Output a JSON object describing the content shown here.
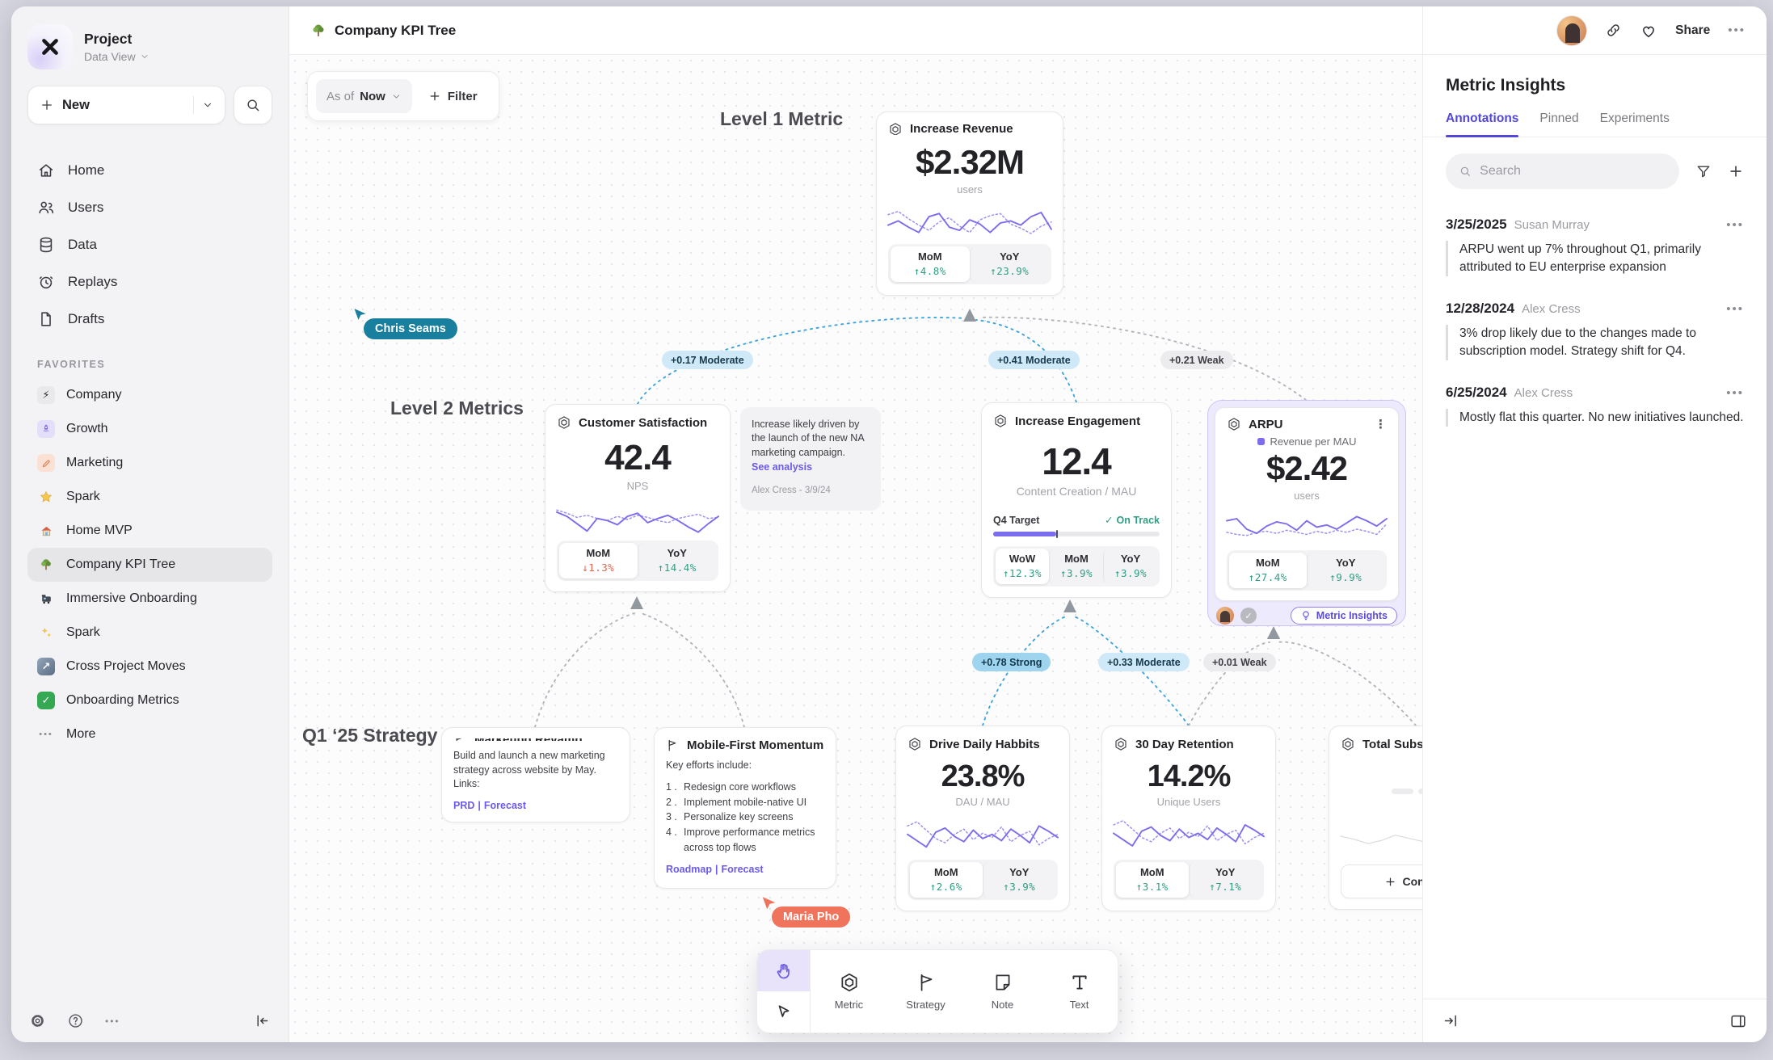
{
  "colors": {
    "accent_purple": "#6c5ce7",
    "edge_blue": "#3fa4dc",
    "positive_green": "#2f9e83",
    "negative_red": "#e4654c",
    "cursor_teal": "#187f9f",
    "cursor_coral": "#f0735c"
  },
  "icons": {
    "ellipsis": "•••",
    "vdots": "⋮",
    "bolt": "⚡",
    "arrow_ne": "↗",
    "check": "✓",
    "plus": "+"
  },
  "sidebar": {
    "project_name": "Project",
    "project_view": "Data View",
    "new_label": "New",
    "nav": [
      {
        "label": "Home"
      },
      {
        "label": "Users"
      },
      {
        "label": "Data"
      },
      {
        "label": "Replays"
      },
      {
        "label": "Drafts"
      }
    ],
    "favorites_header": "FAVORITES",
    "favorites": [
      {
        "label": "Company"
      },
      {
        "label": "Growth"
      },
      {
        "label": "Marketing"
      },
      {
        "label": "Spark"
      },
      {
        "label": "Home MVP"
      },
      {
        "label": "Company KPI Tree"
      },
      {
        "label": "Immersive Onboarding"
      },
      {
        "label": "Spark"
      },
      {
        "label": "Cross Project Moves"
      },
      {
        "label": "Onboarding Metrics"
      }
    ],
    "more_label": "More"
  },
  "header": {
    "title": "Company KPI Tree",
    "share_label": "Share"
  },
  "canvas": {
    "asof_prefix": "As of",
    "asof_value": "Now",
    "filter_label": "Filter",
    "level1_label": "Level 1 Metric",
    "level2_label": "Level 2 Metrics",
    "strategy_label": "Q1 ‘25 Strategy",
    "cursors": {
      "chris": "Chris Seams",
      "maria": "Maria Pho"
    },
    "edges": {
      "e1": "+0.17 Moderate",
      "e2": "+0.41 Moderate",
      "e3": "+0.21 Weak",
      "e4": "+0.78 Strong",
      "e5": "+0.33 Moderate",
      "e6": "+0.01 Weak"
    },
    "cards": {
      "revenue": {
        "title": "Increase Revenue",
        "value": "$2.32M",
        "unit": "users",
        "stats": [
          {
            "label": "MoM",
            "value": "↑4.8%"
          },
          {
            "label": "YoY",
            "value": "↑23.9%"
          }
        ],
        "spark": {
          "solid": [
            22,
            18,
            24,
            29,
            14,
            11,
            24,
            27,
            17,
            21,
            29,
            20,
            18,
            22,
            14,
            10,
            26
          ],
          "dotted": [
            12,
            9,
            16,
            22,
            27,
            19,
            15,
            23,
            29,
            17,
            13,
            11,
            21,
            25,
            30,
            23,
            19
          ]
        }
      },
      "csat": {
        "title": "Customer Satisfaction",
        "value": "42.4",
        "unit": "NPS",
        "stats": [
          {
            "label": "MoM",
            "value": "↓1.3%"
          },
          {
            "label": "YoY",
            "value": "↑14.4%"
          }
        ],
        "spark": {
          "solid": [
            13,
            17,
            24,
            31,
            19,
            21,
            25,
            17,
            14,
            23,
            19,
            16,
            21,
            27,
            32,
            24,
            17
          ],
          "dotted": [
            11,
            14,
            18,
            16,
            19,
            21,
            17,
            20,
            16,
            18,
            21,
            23,
            19,
            17,
            15,
            19,
            18
          ]
        }
      },
      "note": {
        "text": "Increase likely driven by the launch of the new NA marketing campaign.",
        "link": "See analysis",
        "byline": "Alex Cress - 3/9/24"
      },
      "engagement": {
        "title": "Increase Engagement",
        "value": "12.4",
        "unit": "Content Creation / MAU",
        "target_label": "Q4 Target",
        "target_status": "On Track",
        "target_pct": 38,
        "stats": [
          {
            "label": "WoW",
            "value": "↑12.3%"
          },
          {
            "label": "MoM",
            "value": "↑3.9%"
          },
          {
            "label": "YoY",
            "value": "↑3.9%"
          }
        ]
      },
      "arpu": {
        "title": "ARPU",
        "legend": "Revenue per MAU",
        "value": "$2.42",
        "unit": "users",
        "insights_label": "Metric Insights",
        "stats": [
          {
            "label": "MoM",
            "value": "↑27.4%"
          },
          {
            "label": "YoY",
            "value": "↑9.9%"
          }
        ],
        "spark": {
          "solid": [
            12,
            10,
            20,
            24,
            17,
            13,
            15,
            21,
            12,
            18,
            16,
            20,
            14,
            8,
            12,
            17,
            10
          ],
          "dotted": [
            23,
            25,
            26,
            23,
            22,
            24,
            21,
            23,
            25,
            22,
            24,
            21,
            23,
            20,
            22,
            25,
            15
          ]
        }
      },
      "marketing": {
        "title": "Marketing Revamp",
        "body": "Build and launch a new marketing strategy across website by May. Links:",
        "links": [
          "PRD",
          "Forecast"
        ],
        "links_sep": "|"
      },
      "mobile": {
        "title": "Mobile-First Momentum",
        "intro": "Key efforts include:",
        "items": [
          "Redesign core workflows",
          "Implement mobile-native UI",
          "Personalize key screens",
          "Improve performance metrics across top flows"
        ],
        "links": [
          "Roadmap",
          "Forecast"
        ],
        "links_sep": "|"
      },
      "habits": {
        "title": "Drive Daily Habbits",
        "value": "23.8%",
        "unit": "DAU / MAU",
        "stats": [
          {
            "label": "MoM",
            "value": "↑2.6%"
          },
          {
            "label": "YoY",
            "value": "↑3.9%"
          }
        ],
        "spark": {
          "solid": [
            19,
            25,
            31,
            17,
            13,
            21,
            26,
            15,
            23,
            19,
            25,
            14,
            20,
            27,
            11,
            16,
            22
          ],
          "dotted": [
            11,
            7,
            15,
            23,
            27,
            19,
            14,
            24,
            18,
            22,
            12,
            26,
            20,
            16,
            29,
            23,
            19
          ]
        }
      },
      "retention": {
        "title": "30 Day Retention",
        "value": "14.2%",
        "unit": "Unique Users",
        "stats": [
          {
            "label": "MoM",
            "value": "↑3.1%"
          },
          {
            "label": "YoY",
            "value": "↑7.1%"
          }
        ],
        "spark": {
          "solid": [
            18,
            24,
            30,
            16,
            12,
            20,
            25,
            14,
            22,
            18,
            24,
            13,
            19,
            26,
            10,
            15,
            21
          ],
          "dotted": [
            10,
            6,
            14,
            22,
            26,
            18,
            13,
            23,
            17,
            21,
            11,
            25,
            19,
            15,
            28,
            22,
            18
          ]
        }
      },
      "subs": {
        "title": "Total Subscriptions",
        "connect_label": "Connect",
        "spark": {
          "solid": [
            20,
            23,
            27,
            24,
            19,
            22,
            25,
            21,
            24,
            27,
            23,
            19
          ]
        }
      }
    }
  },
  "insights": {
    "title": "Metric Insights",
    "tabs": [
      "Annotations",
      "Pinned",
      "Experiments"
    ],
    "search_placeholder": "Search",
    "annotations": [
      {
        "date": "3/25/2025",
        "author": "Susan Murray",
        "text": "ARPU went up 7% throughout Q1, primarily attributed to EU enterprise expansion"
      },
      {
        "date": "12/28/2024",
        "author": "Alex Cress",
        "text": "3% drop likely due to the changes made to subscription model. Strategy shift for Q4."
      },
      {
        "date": "6/25/2024",
        "author": "Alex Cress",
        "text": "Mostly flat this quarter. No new initiatives launched."
      }
    ]
  },
  "toolbar": {
    "tools": [
      {
        "label": "Metric"
      },
      {
        "label": "Strategy"
      },
      {
        "label": "Note"
      },
      {
        "label": "Text"
      }
    ]
  }
}
